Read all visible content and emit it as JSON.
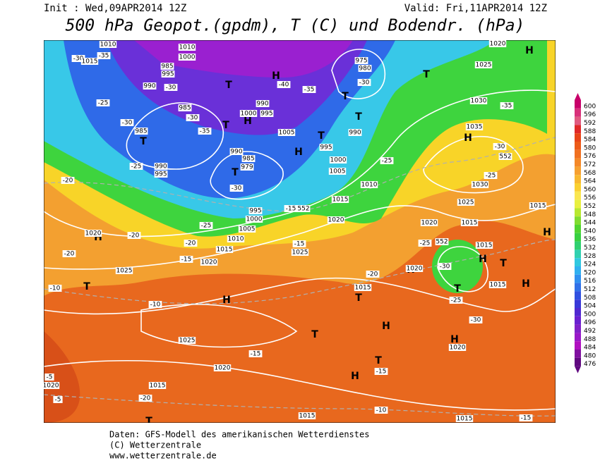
{
  "header": {
    "init": "Init : Wed,09APR2014 12Z",
    "valid": "Valid: Fri,11APR2014 12Z",
    "title": "500 hPa Geopot.(gpdm), T (C) und Bodendr. (hPa)"
  },
  "legend": {
    "levels": [
      600,
      596,
      592,
      588,
      584,
      580,
      576,
      572,
      568,
      564,
      560,
      556,
      552,
      548,
      544,
      540,
      536,
      532,
      528,
      524,
      520,
      516,
      512,
      508,
      504,
      500,
      496,
      492,
      488,
      484,
      480,
      476
    ],
    "colors": [
      "#c8006a",
      "#d8307a",
      "#e05a80",
      "#e02828",
      "#e84418",
      "#ec5a18",
      "#f07020",
      "#f48828",
      "#f6a030",
      "#f8b830",
      "#fad030",
      "#fae650",
      "#e8f040",
      "#b8e830",
      "#80dc30",
      "#50d430",
      "#38d040",
      "#30d070",
      "#30d0b0",
      "#30c8e0",
      "#30b0f0",
      "#3090f0",
      "#3070e8",
      "#3050e0",
      "#3838d8",
      "#5028d0",
      "#6a20d0",
      "#8020c8",
      "#9818c8",
      "#b010c0",
      "#8010a0",
      "#600880"
    ]
  },
  "map_labels": [
    "H",
    "1020",
    "1025",
    "1030",
    "-35",
    "1035",
    "H",
    "-30",
    "552",
    "-25",
    "1030",
    "1025",
    "1015",
    "1020",
    "1015",
    "-25",
    "552",
    "1015",
    "H",
    "-30",
    "T",
    "H",
    "1015",
    "H",
    "T",
    "-25",
    "-30",
    "H",
    "1020",
    "H",
    "T",
    "1015",
    "T",
    "-20",
    "H",
    "1020",
    "H",
    "T",
    "-15",
    "-10",
    "1015",
    "-15",
    "1015",
    "H",
    "T",
    "-10",
    "1025",
    "1020",
    "-15",
    "-15",
    "1025",
    "1015",
    "1010",
    "-20",
    "-25",
    "1005",
    "1000",
    "995",
    "H",
    "1020",
    "-20",
    "-20",
    "-10",
    "1025",
    "-15",
    "1020",
    "1015",
    "-20",
    "T",
    "1020",
    "-5",
    "-5",
    "-15",
    "552",
    "1020",
    "1015",
    "1010",
    "1005",
    "1000",
    "-25",
    "H",
    "T",
    "995",
    "990",
    "T",
    "T",
    "-30",
    "979",
    "985",
    "990",
    "-25",
    "990",
    "995",
    "985",
    "T",
    "-30",
    "H",
    "1000",
    "995",
    "990",
    "1005",
    "985",
    "-30",
    "-35",
    "T",
    "T",
    "-30",
    "990",
    "985",
    "995",
    "1000",
    "1010",
    "H",
    "-40",
    "-35",
    "T",
    "975",
    "980",
    "-30",
    "T",
    "-30",
    "1015",
    "1010",
    "-35",
    "-25",
    "-20"
  ],
  "footer": [
    "Daten: GFS-Modell des amerikanischen Wetterdienstes",
    "(C) Wetterzentrale",
    "www.wetterzentrale.de"
  ]
}
